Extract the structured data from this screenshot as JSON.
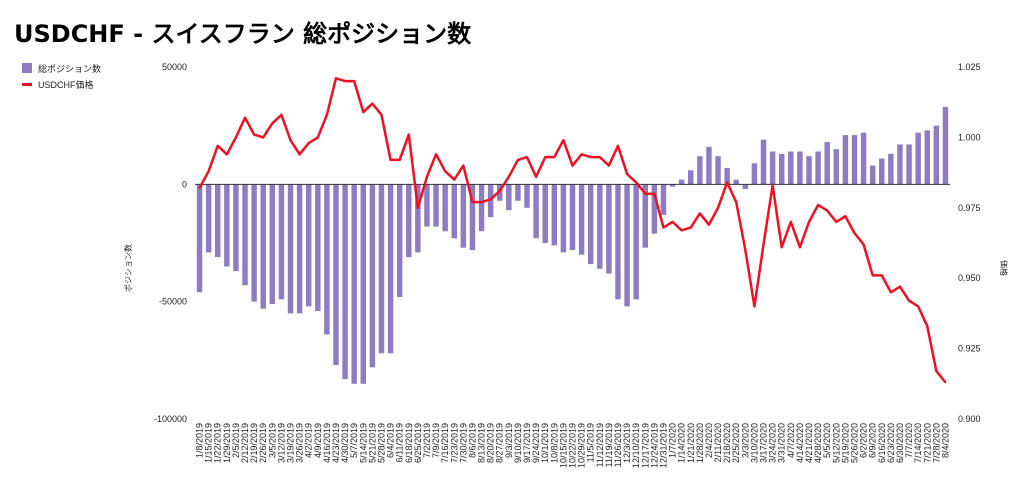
{
  "title": "USDCHF - スイスフラン 総ポジション数",
  "legend": {
    "bar_label": "総ポジション数",
    "line_label": "USDCHF価格"
  },
  "colors": {
    "bar": "#8E7CC3",
    "line": "#EE1122",
    "zero_line": "#333333"
  },
  "chart_data": {
    "type": "bar",
    "title": "USDCHF - スイスフラン 総ポジション数",
    "ylabel": "ポジション数",
    "y2label": "価格",
    "ylim": [
      -100000,
      50000
    ],
    "y2lim": [
      0.9,
      1.025
    ],
    "y_ticks": [
      50000,
      0,
      -50000,
      -100000
    ],
    "y_tick_labels": [
      "50000",
      "0",
      "-50000",
      "-100000"
    ],
    "y2_ticks": [
      1.025,
      1.0,
      0.975,
      0.95,
      0.925,
      0.9
    ],
    "y2_tick_labels": [
      "1.025",
      "1.000",
      "0.975",
      "0.950",
      "0.925",
      "0.900"
    ],
    "categories": [
      "1/8/2019",
      "1/15/2019",
      "1/22/2019",
      "1/29/2019",
      "2/5/2019",
      "2/12/2019",
      "2/19/2019",
      "2/26/2019",
      "3/5/2019",
      "3/12/2019",
      "3/19/2019",
      "3/26/2019",
      "4/2/2019",
      "4/9/2019",
      "4/16/2019",
      "4/23/2019",
      "4/30/2019",
      "5/7/2019",
      "5/14/2019",
      "5/21/2019",
      "5/28/2019",
      "6/4/2019",
      "6/11/2019",
      "6/18/2019",
      "6/25/2019",
      "7/2/2019",
      "7/9/2019",
      "7/16/2019",
      "7/23/2019",
      "7/30/2019",
      "8/6/2019",
      "8/13/2019",
      "8/20/2019",
      "8/27/2019",
      "9/3/2019",
      "9/10/2019",
      "9/17/2019",
      "9/24/2019",
      "10/1/2019",
      "10/8/2019",
      "10/15/2019",
      "10/22/2019",
      "10/29/2019",
      "11/5/2019",
      "11/12/2019",
      "11/19/2019",
      "11/26/2019",
      "12/3/2019",
      "12/10/2019",
      "12/17/2019",
      "12/24/2019",
      "12/31/2019",
      "1/7/2020",
      "1/14/2020",
      "1/21/2020",
      "1/28/2020",
      "2/4/2020",
      "2/11/2020",
      "2/18/2020",
      "2/25/2020",
      "3/3/2020",
      "3/10/2020",
      "3/17/2020",
      "3/24/2020",
      "3/31/2020",
      "4/7/2020",
      "4/14/2020",
      "4/21/2020",
      "4/28/2020",
      "5/5/2020",
      "5/12/2020",
      "5/19/2020",
      "5/26/2020",
      "6/2/2020",
      "6/9/2020",
      "6/16/2020",
      "6/23/2020",
      "6/30/2020",
      "7/7/2020",
      "7/14/2020",
      "7/21/2020",
      "7/28/2020",
      "8/4/2020"
    ],
    "x_tick_labels": [
      "1/8/2019",
      "1/15/2019",
      "1/22/2019",
      "1/29/2019",
      "2/5/2019",
      "2/12/2019",
      "2/19/2019",
      "2/26/2019",
      "3/5/2019",
      "3/12/2019",
      "3/19/2019",
      "3/26/2019",
      "4/2/2019",
      "4/9/2019",
      "4/16/2019",
      "4/23/2019",
      "4/30/2019",
      "5/7/2019",
      "5/14/2019",
      "5/21/2019",
      "5/28/2019",
      "6/4/2019",
      "6/11/2019",
      "6/18/2019",
      "6/25/2019",
      "7/2/2019",
      "7/9/2019",
      "7/16/2019",
      "7/23/2019",
      "7/30/2019",
      "8/6/2019",
      "8/13/2019",
      "8/20/2019",
      "8/27/2019",
      "9/3/2019",
      "9/10/2019",
      "9/17/2019",
      "9/24/2019",
      "10/1/2019",
      "10/8/2019",
      "10/15/2019",
      "10/22/2019",
      "10/29/2019",
      "11/5/2019",
      "11/12/2019",
      "11/19/2019",
      "11/26/2019",
      "12/3/2019",
      "12/10/2019",
      "12/17/2019",
      "12/24/2019",
      "12/31/2019",
      "1/7/2020",
      "1/14/2020",
      "1/21/2020",
      "1/28/2020",
      "2/4/2020",
      "2/11/2020",
      "2/18/2020",
      "2/25/2020",
      "3/3/2020",
      "3/10/2020",
      "3/17/2020",
      "3/24/2020",
      "3/31/2020",
      "4/7/2020",
      "4/14/2020",
      "4/21/2020",
      "4/28/2020",
      "5/5/2020",
      "5/12/2020",
      "5/19/2020",
      "5/26/2020",
      "6/2/2020",
      "6/9/2020",
      "6/16/2020",
      "6/23/2020",
      "6/30/2020",
      "7/7/2020",
      "7/14/2020",
      "7/21/2020",
      "7/28/2020",
      "8/4/2020"
    ],
    "series": [
      {
        "name": "総ポジション数",
        "kind": "bar",
        "axis": "left",
        "values": [
          -46000,
          -29000,
          -31000,
          -35000,
          -37000,
          -43000,
          -50000,
          -53000,
          -51000,
          -49000,
          -55000,
          -55000,
          -52000,
          -54000,
          -64000,
          -77000,
          -83000,
          -85000,
          -85000,
          -78000,
          -72000,
          -72000,
          -48000,
          -31000,
          -29000,
          -18000,
          -18000,
          -20000,
          -23000,
          -27000,
          -28000,
          -20000,
          -14000,
          -7000,
          -11000,
          -7000,
          -10000,
          -23000,
          -25000,
          -26000,
          -29000,
          -28000,
          -30000,
          -34000,
          -36000,
          -38000,
          -49000,
          -52000,
          -49000,
          -27000,
          -21000,
          -13000,
          -1000,
          2000,
          6000,
          12000,
          16000,
          12000,
          7000,
          2000,
          -2000,
          9000,
          19000,
          14000,
          13000,
          14000,
          14000,
          12000,
          14000,
          18000,
          15000,
          21000,
          21000,
          22000,
          8000,
          11000,
          13000,
          17000,
          17000,
          22000,
          23000,
          25000,
          33000
        ]
      },
      {
        "name": "USDCHF価格",
        "kind": "line",
        "axis": "right",
        "values": [
          0.982,
          0.988,
          0.997,
          0.994,
          1.0,
          1.007,
          1.001,
          1.0,
          1.005,
          1.008,
          0.999,
          0.994,
          0.998,
          1.0,
          1.008,
          1.021,
          1.02,
          1.02,
          1.009,
          1.012,
          1.008,
          0.992,
          0.992,
          1.001,
          0.975,
          0.986,
          0.994,
          0.988,
          0.985,
          0.99,
          0.977,
          0.977,
          0.978,
          0.981,
          0.986,
          0.992,
          0.993,
          0.986,
          0.993,
          0.993,
          0.999,
          0.99,
          0.994,
          0.993,
          0.993,
          0.99,
          0.997,
          0.987,
          0.984,
          0.98,
          0.98,
          0.968,
          0.97,
          0.967,
          0.968,
          0.973,
          0.969,
          0.975,
          0.984,
          0.977,
          0.96,
          0.94,
          0.962,
          0.983,
          0.961,
          0.97,
          0.961,
          0.97,
          0.976,
          0.974,
          0.97,
          0.972,
          0.966,
          0.962,
          0.951,
          0.951,
          0.945,
          0.947,
          0.942,
          0.94,
          0.933,
          0.917,
          0.913
        ]
      }
    ],
    "grid": false,
    "legend_position": "top-left"
  }
}
